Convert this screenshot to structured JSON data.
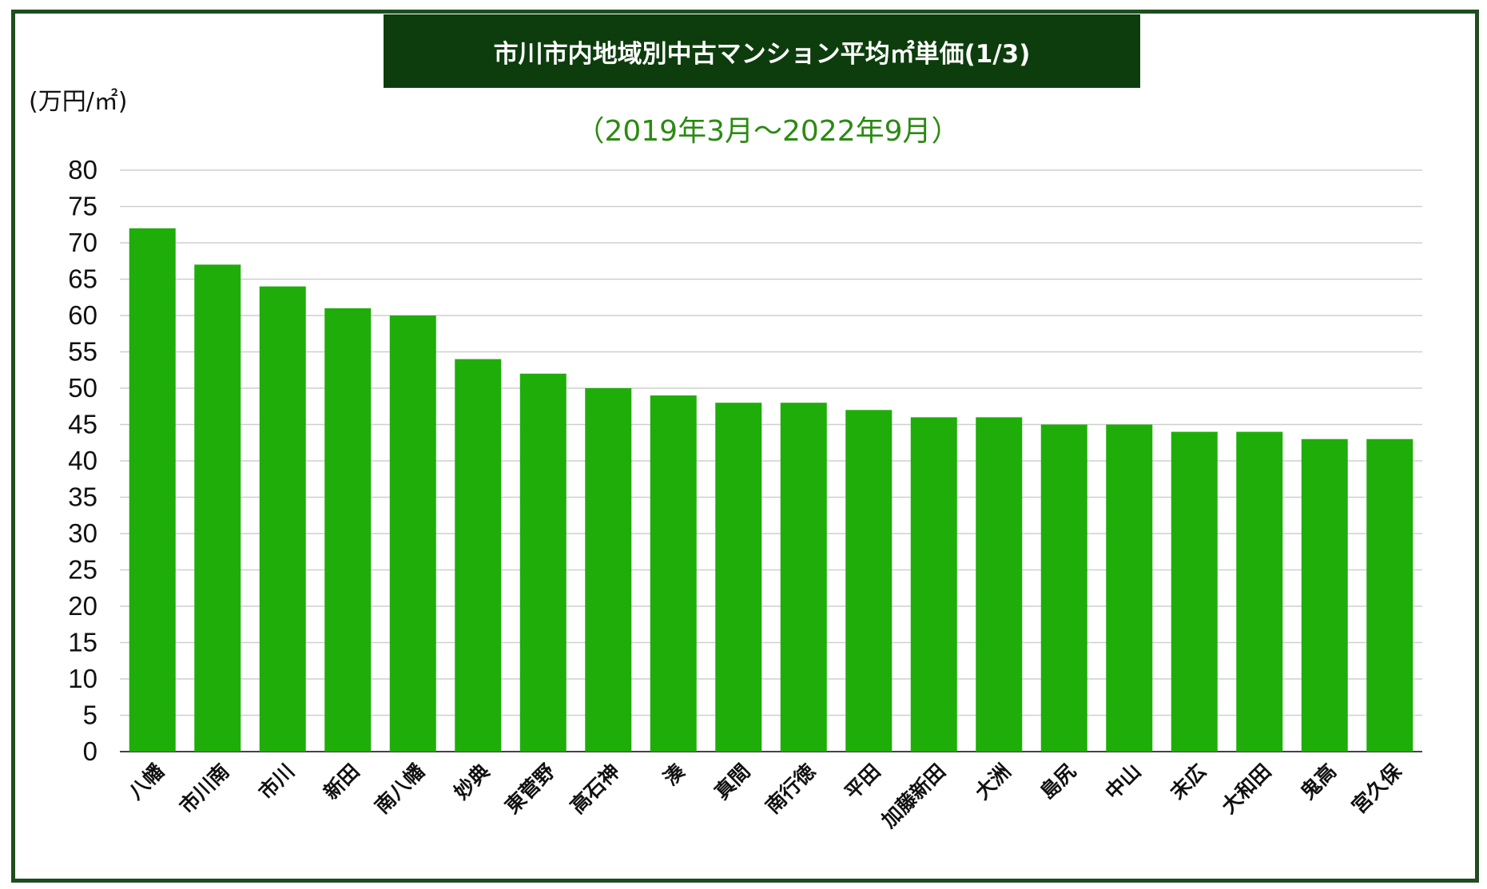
{
  "chart_data": {
    "type": "bar",
    "title": "市川市内地域別中古マンション平均㎡単価(1/3)",
    "subtitle": "（2019年3月～2022年9月）",
    "ylabel": "(万円/㎡)",
    "xlabel": "",
    "ylim": [
      0,
      80
    ],
    "yticks": [
      0,
      5,
      10,
      15,
      20,
      25,
      30,
      35,
      40,
      45,
      50,
      55,
      60,
      65,
      70,
      75,
      80
    ],
    "grid": true,
    "categories": [
      "八幡",
      "市川南",
      "市川",
      "新田",
      "南八幡",
      "妙典",
      "東菅野",
      "高石神",
      "湊",
      "真間",
      "南行徳",
      "平田",
      "加藤新田",
      "大洲",
      "島尻",
      "中山",
      "末広",
      "大和田",
      "鬼高",
      "宮久保"
    ],
    "values": [
      72,
      67,
      64,
      61,
      60,
      54,
      52,
      50,
      49,
      48,
      48,
      47,
      46,
      46,
      45,
      45,
      44,
      44,
      43,
      43
    ],
    "colors": {
      "bar": "#1fad0a",
      "grid": "#cfcfcf",
      "axis": "#444444",
      "title_bg": "#0d3d0d",
      "subtitle": "#2b8a12",
      "frame": "#1f4d1f"
    }
  }
}
